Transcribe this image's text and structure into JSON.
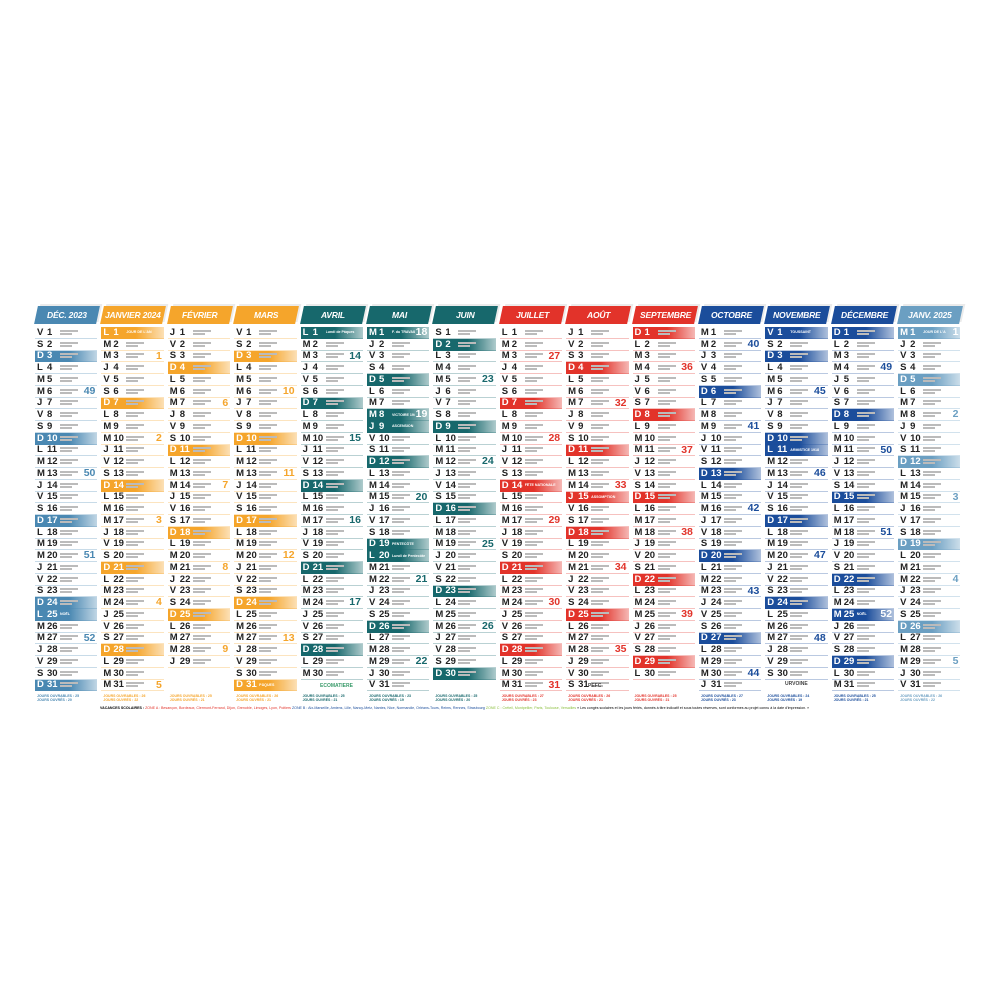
{
  "day_letters": [
    "D",
    "L",
    "M",
    "M",
    "J",
    "V",
    "S"
  ],
  "months": [
    {
      "name": "DÉC. 2023",
      "year": 2023,
      "month": 12,
      "color": "#4a88b2",
      "weeks": [
        49,
        50,
        51,
        52
      ]
    },
    {
      "name": "JANVIER 2024",
      "year": 2024,
      "month": 1,
      "color": "#f5a52b",
      "weeks": [
        1,
        2,
        3,
        4,
        5
      ]
    },
    {
      "name": "FÉVRIER",
      "year": 2024,
      "month": 2,
      "color": "#f5a52b",
      "weeks": [
        6,
        7,
        8,
        9
      ]
    },
    {
      "name": "MARS",
      "year": 2024,
      "month": 3,
      "color": "#f5a52b",
      "weeks": [
        10,
        11,
        12,
        13
      ]
    },
    {
      "name": "AVRIL",
      "year": 2024,
      "month": 4,
      "color": "#17686c",
      "weeks": [
        14,
        15,
        16,
        17
      ]
    },
    {
      "name": "MAI",
      "year": 2024,
      "month": 5,
      "color": "#17686c",
      "weeks": [
        18,
        19,
        20,
        21,
        22
      ]
    },
    {
      "name": "JUIN",
      "year": 2024,
      "month": 6,
      "color": "#17686c",
      "weeks": [
        23,
        24,
        25,
        26
      ]
    },
    {
      "name": "JUILLET",
      "year": 2024,
      "month": 7,
      "color": "#e2332a",
      "weeks": [
        27,
        28,
        29,
        30,
        31
      ]
    },
    {
      "name": "AOÛT",
      "year": 2024,
      "month": 8,
      "color": "#e2332a",
      "weeks": [
        32,
        33,
        34,
        35
      ]
    },
    {
      "name": "SEPTEMBRE",
      "year": 2024,
      "month": 9,
      "color": "#e2332a",
      "weeks": [
        36,
        37,
        38,
        39
      ]
    },
    {
      "name": "OCTOBRE",
      "year": 2024,
      "month": 10,
      "color": "#1b4d9b",
      "weeks": [
        40,
        41,
        42,
        43,
        44
      ]
    },
    {
      "name": "NOVEMBRE",
      "year": 2024,
      "month": 11,
      "color": "#1b4d9b",
      "weeks": [
        45,
        46,
        47,
        48
      ]
    },
    {
      "name": "DÉCEMBRE",
      "year": 2024,
      "month": 12,
      "color": "#1b4d9b",
      "weeks": [
        49,
        50,
        51,
        52
      ]
    },
    {
      "name": "JANV. 2025",
      "year": 2025,
      "month": 1,
      "color": "#6b9fc2",
      "weeks": [
        1,
        2,
        3,
        4,
        5
      ]
    }
  ],
  "holidays": {
    "2023-12-25": "NOËL",
    "2024-1-1": "JOUR DE L'AN",
    "2024-3-31": "PÂQUES",
    "2024-4-1": "Lundi de Pâques",
    "2024-5-1": "F. du TRAVAIL",
    "2024-5-8": "VICTOIRE 1945",
    "2024-5-9": "ASCENSION",
    "2024-5-19": "PENTECÔTE",
    "2024-5-20": "Lundi de Pentecôte",
    "2024-7-14": "FÊTE NATIONALE",
    "2024-8-15": "ASSOMPTION",
    "2024-11-1": "TOUSSAINT",
    "2024-11-11": "ARMISTICE 1918",
    "2024-12-25": "NOËL",
    "2025-1-1": "JOUR DE L'AN"
  },
  "footer": {
    "ouvrables": "JOURS OUVRABLES :",
    "ouvres": "JOURS OUVRÉS :"
  },
  "vacances": {
    "title": "VACANCES SCOLAIRES :",
    "zone_a": "ZONE A : Besançon, Bordeaux, Clermont-Ferrand, Dijon, Grenoble, Limoges, Lyon, Poitiers",
    "zone_b": "ZONE B : Aix-Marseille, Amiens, Lille, Nancy-Metz, Nantes, Nice, Normandie, Orléans-Tours, Reims, Rennes, Strasbourg",
    "zone_c": "ZONE C : Créteil, Montpellier, Paris, Toulouse, Versailles",
    "note": "« Les congés scolaires et les jours fériés, donnés à titre indicatif et sous toutes réserves, sont conformes au projet connu à la date d'impression. »",
    "colors": {
      "a": "#e2332a",
      "b": "#1b4d9b",
      "c": "#8bbf3f"
    }
  },
  "logos": {
    "ecomatiere": "ECOMATIERE",
    "pefc": "PEFC",
    "urvoine": "URVOINE"
  }
}
